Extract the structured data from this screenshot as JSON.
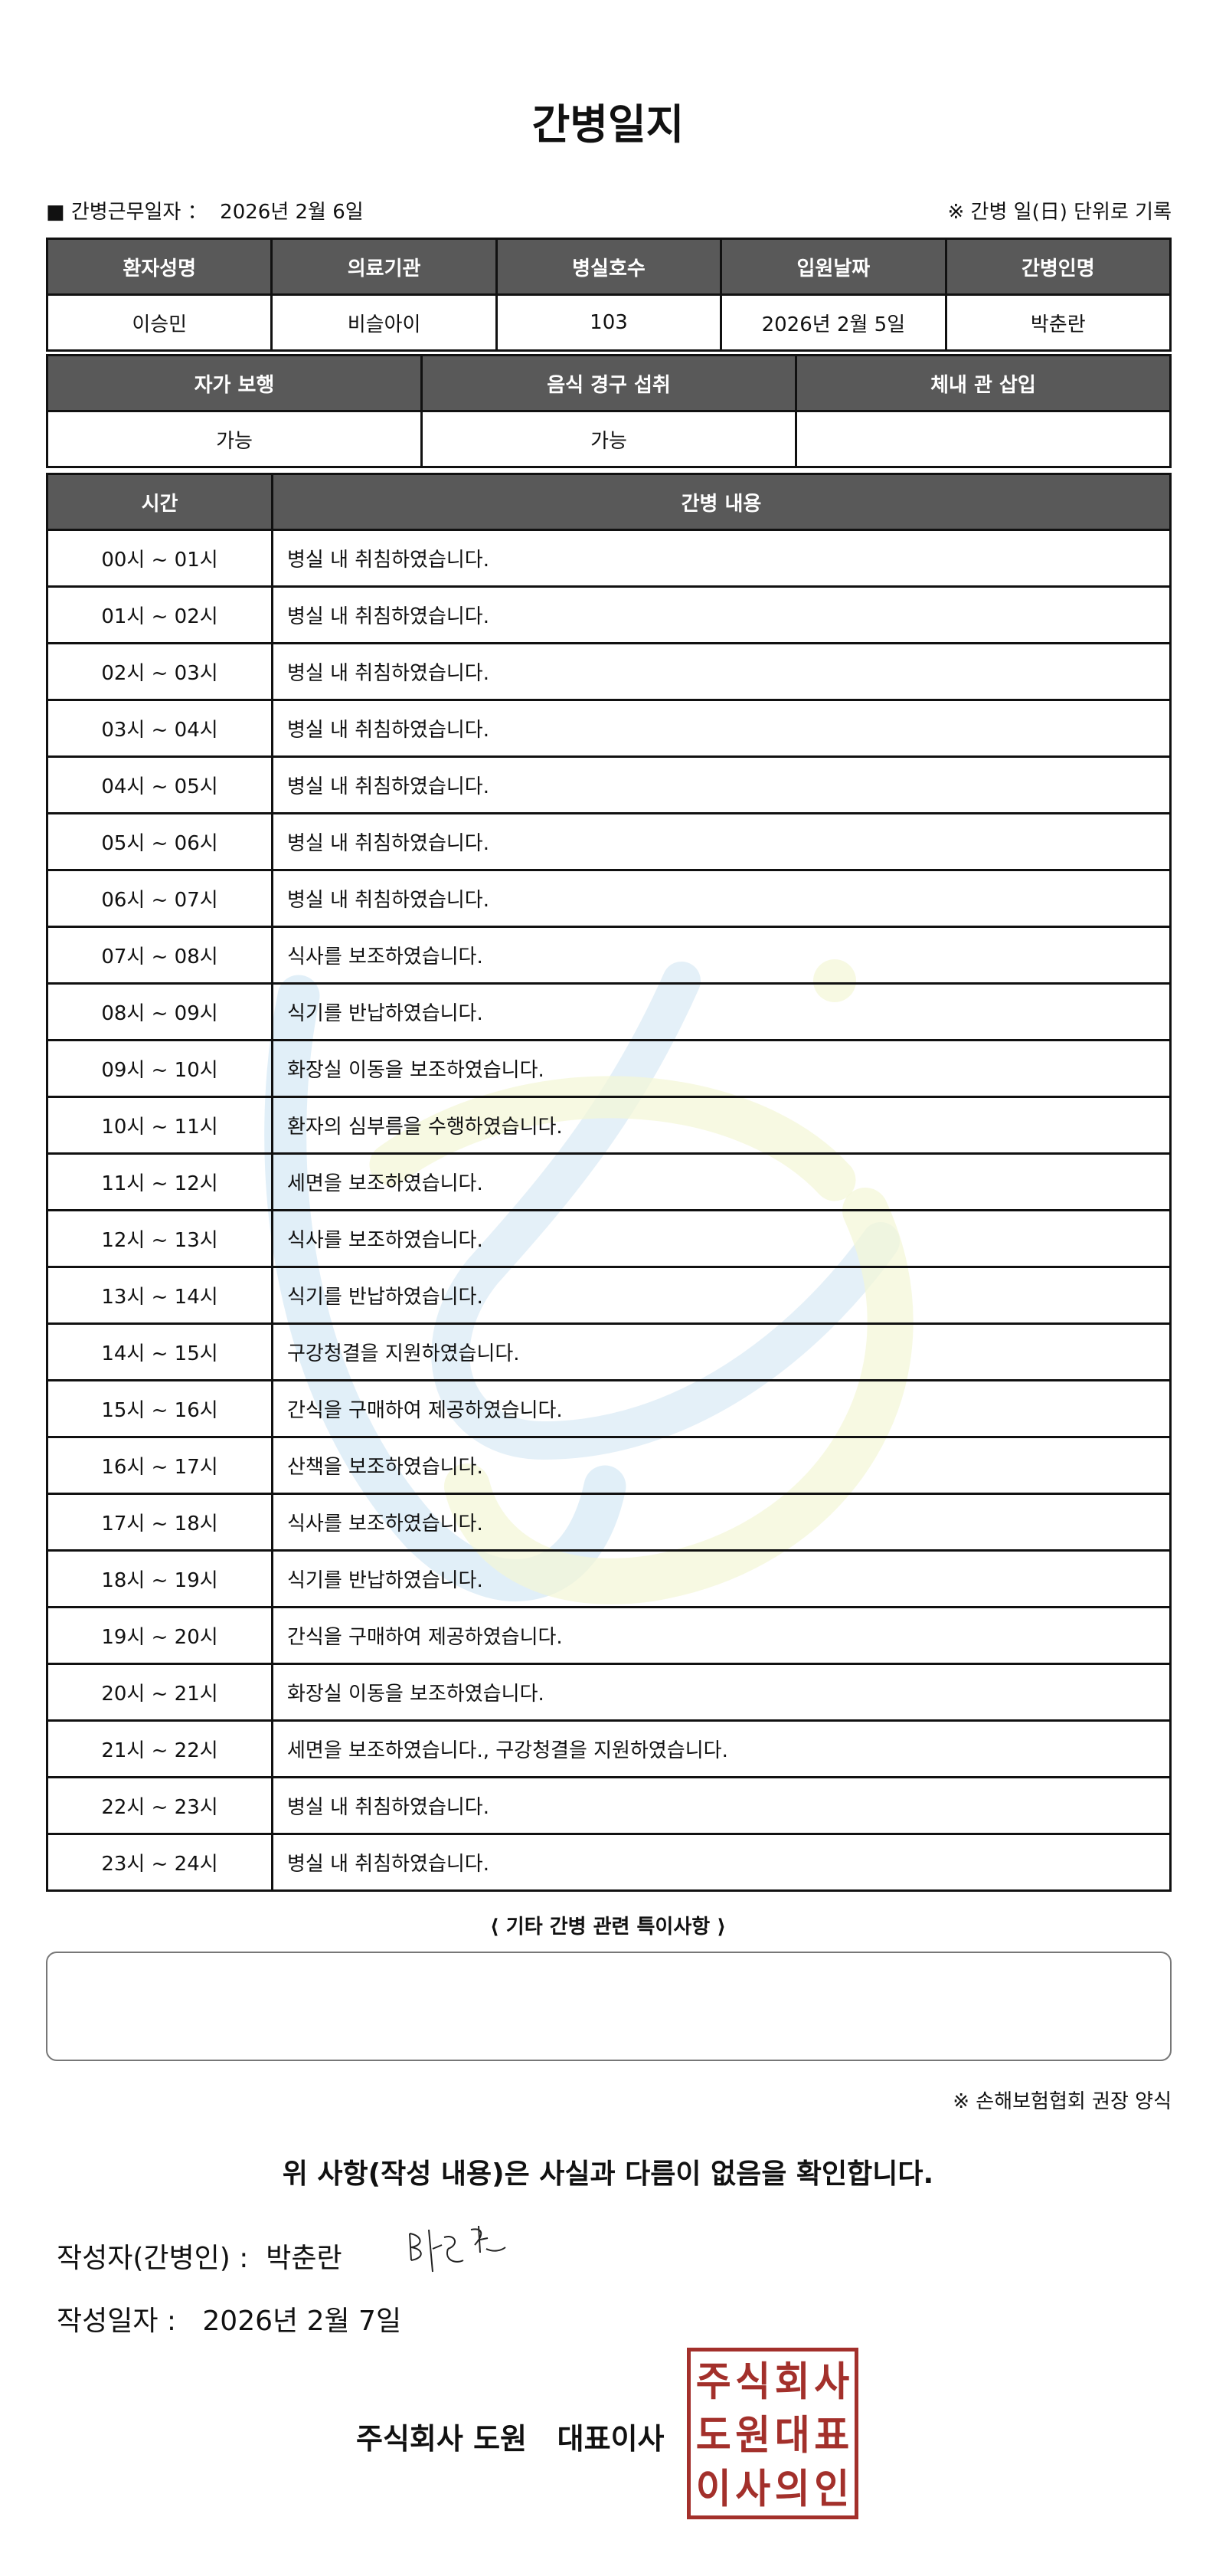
{
  "title": "간병일지",
  "work_date": {
    "label": "■ 간병근무일자 ：",
    "value": "2026년 2월 6일"
  },
  "work_note": "※ 간병 일(日) 단위로 기록",
  "info_table": {
    "headers": [
      "환자성명",
      "의료기관",
      "병실호수",
      "입원날짜",
      "간병인명"
    ],
    "values": [
      "이승민",
      "비슬아이",
      "103",
      "2026년 2월 5일",
      "박춘란"
    ]
  },
  "status_table": {
    "headers": [
      "자가 보행",
      "음식 경구 섭취",
      "체내 관 삽입"
    ],
    "values": [
      "가능",
      "가능",
      ""
    ]
  },
  "log_table": {
    "headers": [
      "시간",
      "간병 내용"
    ],
    "rows": [
      {
        "time": "00시 ~ 01시",
        "content": "병실 내 취침하였습니다."
      },
      {
        "time": "01시 ~ 02시",
        "content": "병실 내 취침하였습니다."
      },
      {
        "time": "02시 ~ 03시",
        "content": "병실 내 취침하였습니다."
      },
      {
        "time": "03시 ~ 04시",
        "content": "병실 내 취침하였습니다."
      },
      {
        "time": "04시 ~ 05시",
        "content": "병실 내 취침하였습니다."
      },
      {
        "time": "05시 ~ 06시",
        "content": "병실 내 취침하였습니다."
      },
      {
        "time": "06시 ~ 07시",
        "content": "병실 내 취침하였습니다."
      },
      {
        "time": "07시 ~ 08시",
        "content": "식사를 보조하였습니다."
      },
      {
        "time": "08시 ~ 09시",
        "content": "식기를 반납하였습니다."
      },
      {
        "time": "09시 ~ 10시",
        "content": "화장실 이동을 보조하였습니다."
      },
      {
        "time": "10시 ~ 11시",
        "content": "환자의 심부름을 수행하였습니다."
      },
      {
        "time": "11시 ~ 12시",
        "content": "세면을 보조하였습니다."
      },
      {
        "time": "12시 ~ 13시",
        "content": "식사를 보조하였습니다."
      },
      {
        "time": "13시 ~ 14시",
        "content": "식기를 반납하였습니다."
      },
      {
        "time": "14시 ~ 15시",
        "content": "구강청결을 지원하였습니다."
      },
      {
        "time": "15시 ~ 16시",
        "content": "간식을 구매하여 제공하였습니다."
      },
      {
        "time": "16시 ~ 17시",
        "content": "산책을 보조하였습니다."
      },
      {
        "time": "17시 ~ 18시",
        "content": "식사를 보조하였습니다."
      },
      {
        "time": "18시 ~ 19시",
        "content": "식기를 반납하였습니다."
      },
      {
        "time": "19시 ~ 20시",
        "content": "간식을 구매하여 제공하였습니다."
      },
      {
        "time": "20시 ~ 21시",
        "content": "화장실 이동을 보조하였습니다."
      },
      {
        "time": "21시 ~ 22시",
        "content": "세면을 보조하였습니다., 구강청결을 지원하였습니다."
      },
      {
        "time": "22시 ~ 23시",
        "content": "병실 내 취침하였습니다."
      },
      {
        "time": "23시 ~ 24시",
        "content": "병실 내 취침하였습니다."
      }
    ]
  },
  "remarks": {
    "label": "⟨ 기타 간병 관련 특이사항 ⟩",
    "value": ""
  },
  "form_note": "※ 손해보험협회 권장 양식",
  "confirm_text": "위 사항(작성 내용)은 사실과 다름이 없음을 확인합니다.",
  "writer": {
    "label": "작성자(간병인) :",
    "value": "박춘란",
    "signature": "박춘란"
  },
  "write_date": {
    "label": "작성일자 :",
    "value": "2026년 2월 7일"
  },
  "company": "주식회사 도원   대표이사",
  "seal": {
    "text": "주식회사도원대표이사의인",
    "color": "#a3302b"
  },
  "colors": {
    "header_bg": "#595959",
    "watermark_blue": "#c9e2f2",
    "watermark_yellow": "#f4f6d6"
  }
}
